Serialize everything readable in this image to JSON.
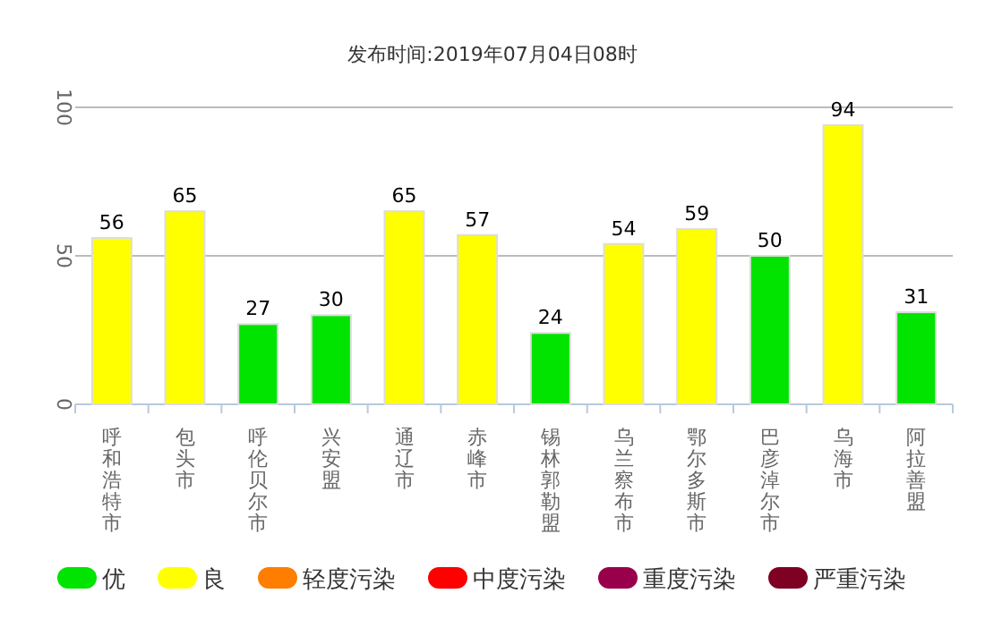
{
  "chart_data": {
    "type": "bar",
    "title": "发布时间:2019年07月04日08时",
    "categories": [
      "呼和浩特市",
      "包头市",
      "呼伦贝尔市",
      "兴安盟",
      "通辽市",
      "赤峰市",
      "锡林郭勒盟",
      "乌兰察布市",
      "鄂尔多斯市",
      "巴彦淖尔市",
      "乌海市",
      "阿拉善盟"
    ],
    "data_labels": true,
    "grid": "y",
    "legend": "bottom",
    "ylim": [
      0,
      100
    ],
    "yticks": [
      0,
      50,
      100
    ],
    "series": [
      {
        "name": "优",
        "color": "#00e400",
        "values": [
          null,
          null,
          27,
          30,
          null,
          null,
          24,
          null,
          null,
          50,
          null,
          31
        ]
      },
      {
        "name": "良",
        "color": "#ffff00",
        "values": [
          56,
          65,
          null,
          null,
          65,
          57,
          null,
          54,
          59,
          null,
          94,
          null
        ]
      },
      {
        "name": "轻度污染",
        "color": "#ff7e00",
        "values": [
          null,
          null,
          null,
          null,
          null,
          null,
          null,
          null,
          null,
          null,
          null,
          null
        ]
      },
      {
        "name": "中度污染",
        "color": "#ff0000",
        "values": [
          null,
          null,
          null,
          null,
          null,
          null,
          null,
          null,
          null,
          null,
          null,
          null
        ]
      },
      {
        "name": "重度污染",
        "color": "#99004c",
        "values": [
          null,
          null,
          null,
          null,
          null,
          null,
          null,
          null,
          null,
          null,
          null,
          null
        ]
      },
      {
        "name": "严重污染",
        "color": "#7e0023",
        "values": [
          null,
          null,
          null,
          null,
          null,
          null,
          null,
          null,
          null,
          null,
          null,
          null
        ]
      }
    ]
  }
}
